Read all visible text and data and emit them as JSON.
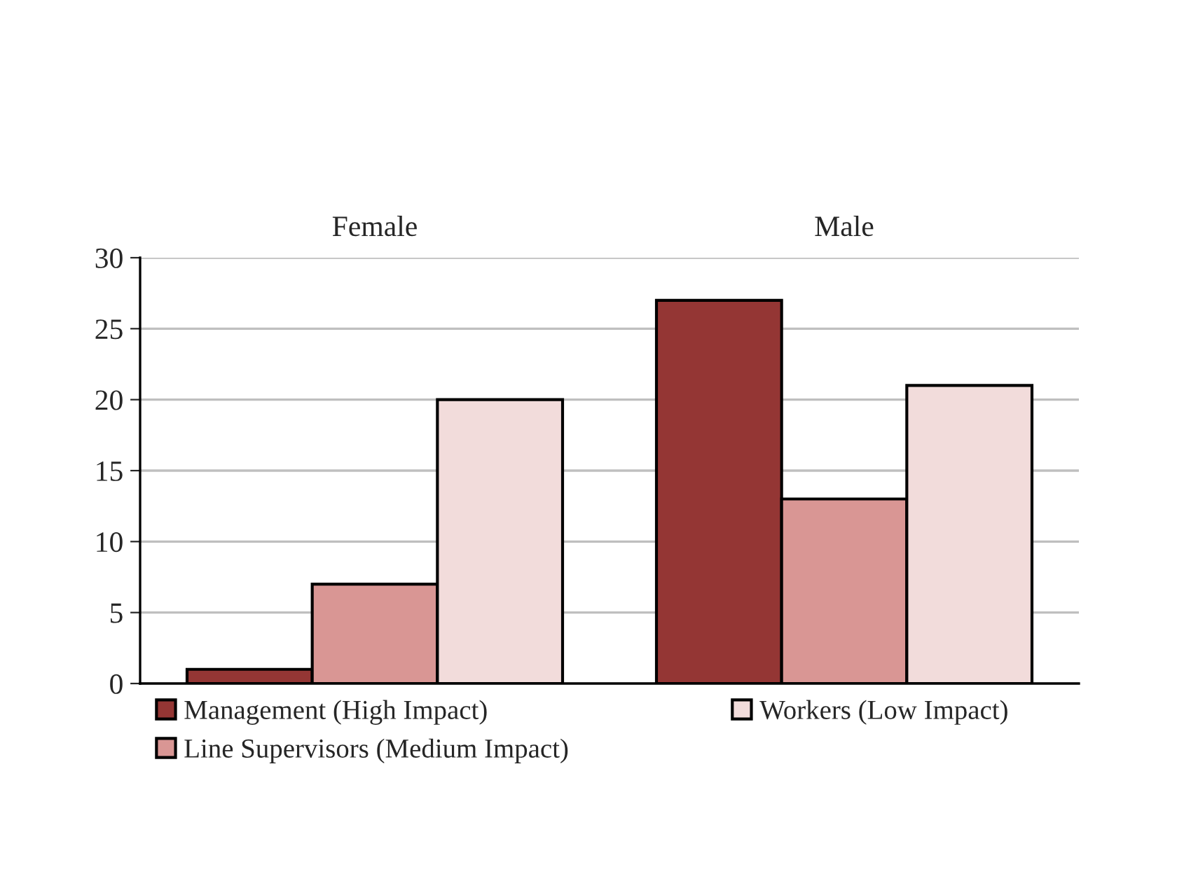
{
  "chart_data": {
    "type": "bar",
    "categories": [
      "Female",
      "Male"
    ],
    "series": [
      {
        "name": "Management (High Impact)",
        "color": "#943634",
        "values": [
          1,
          27
        ]
      },
      {
        "name": "Line Supervisors (Medium Impact)",
        "color": "#d99694",
        "values": [
          7,
          13
        ]
      },
      {
        "name": "Workers (Low Impact)",
        "color": "#f2dcdb",
        "values": [
          20,
          21
        ]
      }
    ],
    "ylim": [
      0,
      30
    ],
    "yticks": [
      0,
      5,
      10,
      15,
      20,
      25,
      30
    ],
    "grid": "y",
    "legend": "bottom"
  }
}
